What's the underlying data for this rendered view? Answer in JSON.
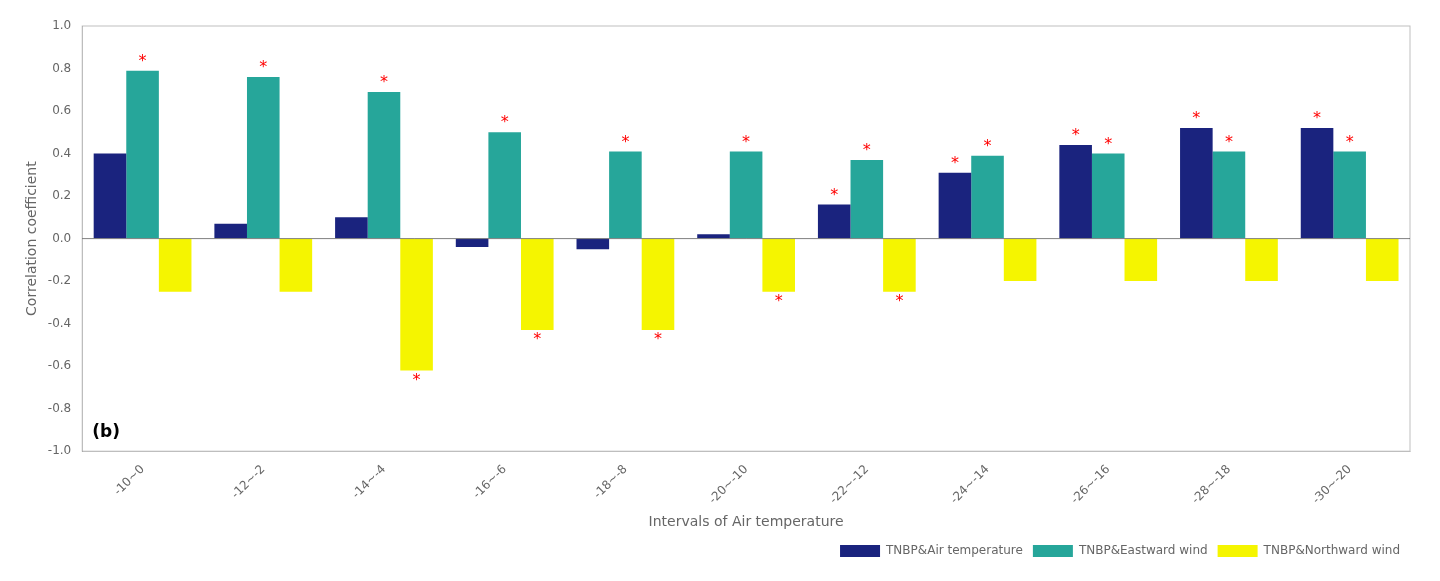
{
  "chart_data": {
    "type": "bar",
    "x_label": "Intervals of Air temperature",
    "y_label": "Correlation coefficient",
    "annotations": [
      "(b)"
    ],
    "significance_label": "*",
    "categories": [
      "-10~0",
      "-12~-2",
      "-14~-4",
      "-16~-6",
      "-18~-8",
      "-20~-10",
      "-22~-12",
      "-24~-14",
      "-26~-16",
      "-28~-18",
      "-30~-20"
    ],
    "series": [
      {
        "name": "TNBP&Air temperature",
        "color": "#1a237e",
        "values": [
          0.4,
          0.07,
          0.1,
          -0.04,
          -0.05,
          0.02,
          0.16,
          0.31,
          0.44,
          0.52,
          0.52
        ],
        "significant": [
          false,
          false,
          false,
          false,
          false,
          false,
          true,
          true,
          true,
          true,
          true
        ]
      },
      {
        "name": "TNBP&Eastward wind",
        "color": "#26a69a",
        "values": [
          0.79,
          0.76,
          0.69,
          0.5,
          0.41,
          0.41,
          0.37,
          0.39,
          0.4,
          0.41,
          0.41
        ],
        "significant": [
          true,
          true,
          true,
          true,
          true,
          true,
          true,
          true,
          true,
          true,
          true
        ]
      },
      {
        "name": "TNBP&Northward wind",
        "color": "#f5f500",
        "values": [
          -0.25,
          -0.25,
          -0.62,
          -0.43,
          -0.43,
          -0.25,
          -0.25,
          -0.2,
          -0.2,
          -0.2,
          -0.2
        ],
        "significant": [
          false,
          false,
          true,
          true,
          true,
          true,
          true,
          false,
          false,
          false,
          false
        ]
      }
    ],
    "ylim": [
      -1,
      1
    ],
    "yticks": [
      {
        "value": -1.0,
        "label": "-1.0"
      },
      -0.8,
      -0.6,
      -0.4,
      -0.2,
      {
        "value": 0.0,
        "label": "0.0"
      },
      0.2,
      0.4,
      0.6,
      0.8,
      {
        "value": 1.0,
        "label": "1.0"
      }
    ],
    "grid": false,
    "legend": "lower right"
  }
}
